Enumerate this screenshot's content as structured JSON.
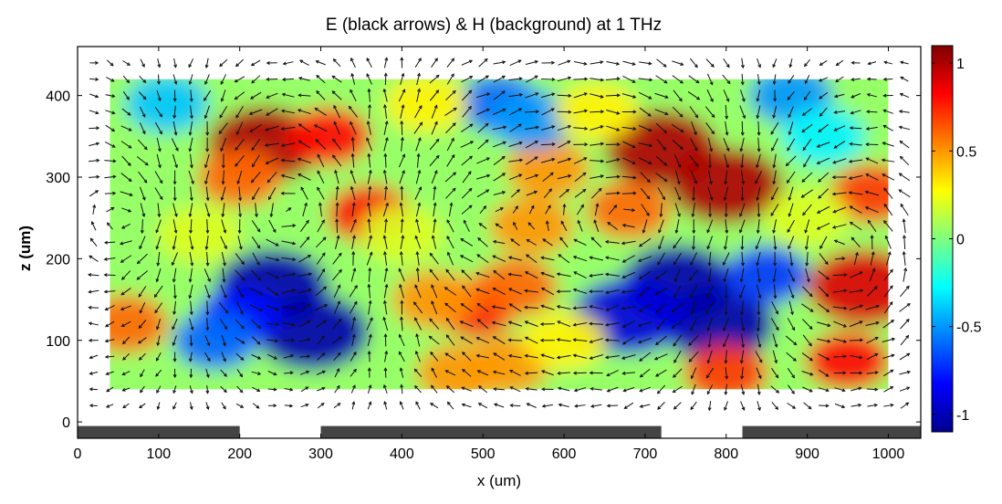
{
  "chart_data": {
    "type": "heatmap",
    "title": "E (black arrows) & H (background) at 1 THz",
    "xlabel": "x (um)",
    "ylabel": "z (um)",
    "xlim": [
      0,
      1040
    ],
    "ylim": [
      -20,
      460
    ],
    "x_ticks": [
      0,
      100,
      200,
      300,
      400,
      500,
      600,
      700,
      800,
      900,
      1000
    ],
    "y_ticks": [
      0,
      100,
      200,
      300,
      400
    ],
    "colorbar": {
      "range": [
        -1.1,
        1.1
      ],
      "ticks": [
        1,
        0.5,
        0,
        -0.5,
        -1
      ],
      "colormap": "jet"
    },
    "field_extent": {
      "x": [
        40,
        1000
      ],
      "z": [
        40,
        420
      ]
    },
    "background_blobs": [
      {
        "x": 230,
        "z": 340,
        "value": 1.0
      },
      {
        "x": 200,
        "z": 300,
        "value": 0.6
      },
      {
        "x": 310,
        "z": 350,
        "value": 0.8
      },
      {
        "x": 360,
        "z": 255,
        "value": 0.8
      },
      {
        "x": 720,
        "z": 335,
        "value": 1.0
      },
      {
        "x": 800,
        "z": 290,
        "value": 1.0
      },
      {
        "x": 680,
        "z": 260,
        "value": 0.6
      },
      {
        "x": 580,
        "z": 310,
        "value": 0.5
      },
      {
        "x": 980,
        "z": 280,
        "value": 0.7
      },
      {
        "x": 240,
        "z": 165,
        "value": -1.0
      },
      {
        "x": 290,
        "z": 110,
        "value": -1.0
      },
      {
        "x": 200,
        "z": 130,
        "value": -0.8
      },
      {
        "x": 740,
        "z": 170,
        "value": -1.0
      },
      {
        "x": 790,
        "z": 120,
        "value": -1.0
      },
      {
        "x": 680,
        "z": 130,
        "value": -0.9
      },
      {
        "x": 850,
        "z": 180,
        "value": -0.7
      },
      {
        "x": 490,
        "z": 140,
        "value": 0.8
      },
      {
        "x": 540,
        "z": 165,
        "value": 0.6
      },
      {
        "x": 440,
        "z": 150,
        "value": 0.5
      },
      {
        "x": 970,
        "z": 165,
        "value": 0.9
      },
      {
        "x": 950,
        "z": 75,
        "value": 0.8
      },
      {
        "x": 520,
        "z": 390,
        "value": -0.6
      },
      {
        "x": 560,
        "z": 370,
        "value": -0.5
      },
      {
        "x": 110,
        "z": 390,
        "value": -0.4
      },
      {
        "x": 880,
        "z": 400,
        "value": -0.5
      },
      {
        "x": 920,
        "z": 350,
        "value": -0.3
      },
      {
        "x": 560,
        "z": 240,
        "value": 0.5
      },
      {
        "x": 470,
        "z": 60,
        "value": 0.5
      },
      {
        "x": 530,
        "z": 70,
        "value": 0.5
      },
      {
        "x": 800,
        "z": 60,
        "value": 0.7
      },
      {
        "x": 60,
        "z": 120,
        "value": 0.6
      },
      {
        "x": 170,
        "z": 100,
        "value": -0.6
      },
      {
        "x": 400,
        "z": 230,
        "value": 0.2
      },
      {
        "x": 640,
        "z": 380,
        "value": 0.3
      },
      {
        "x": 150,
        "z": 230,
        "value": 0.2
      },
      {
        "x": 430,
        "z": 390,
        "value": 0.3
      },
      {
        "x": 600,
        "z": 100,
        "value": 0.3
      },
      {
        "x": 900,
        "z": 250,
        "value": 0.2
      }
    ],
    "vortices": [
      {
        "x": 260,
        "z": 260,
        "spin": 1,
        "strength": 1.0
      },
      {
        "x": 690,
        "z": 250,
        "spin": -1,
        "strength": 1.0
      },
      {
        "x": 470,
        "z": 250,
        "spin": -1,
        "strength": 0.7
      },
      {
        "x": 930,
        "z": 210,
        "spin": 1,
        "strength": 0.8
      },
      {
        "x": 70,
        "z": 250,
        "spin": -1,
        "strength": 0.6
      }
    ],
    "electrodes": [
      {
        "x": [
          0,
          200
        ]
      },
      {
        "x": [
          300,
          720
        ]
      },
      {
        "x": [
          820,
          1040
        ]
      }
    ]
  }
}
